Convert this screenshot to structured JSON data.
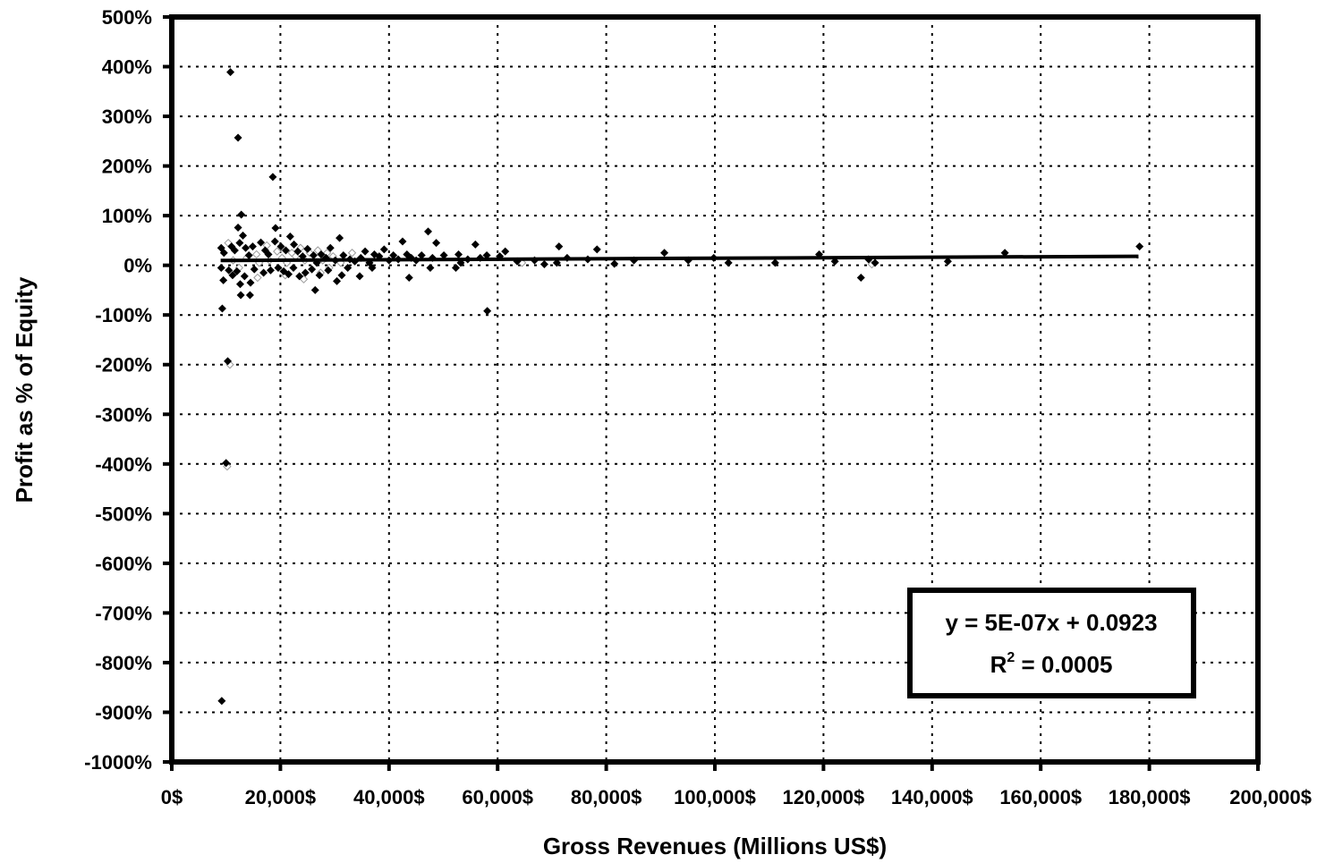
{
  "chart_data": {
    "type": "scatter",
    "xlabel": "Gross Revenues (Millions US$)",
    "ylabel": "Profit as % of Equity",
    "xlim": [
      0,
      200000
    ],
    "ylim": [
      -10,
      5
    ],
    "x_ticks": [
      0,
      20000,
      40000,
      60000,
      80000,
      100000,
      120000,
      140000,
      160000,
      180000,
      200000
    ],
    "x_tick_labels": [
      "0$",
      "20,000$",
      "40,000$",
      "60,000$",
      "80,000$",
      "100,000$",
      "120,000$",
      "140,000$",
      "160,000$",
      "180,000$",
      "200,000$"
    ],
    "y_ticks": [
      5,
      4,
      3,
      2,
      1,
      0,
      -1,
      -2,
      -3,
      -4,
      -5,
      -6,
      -7,
      -8,
      -9,
      -10
    ],
    "y_tick_labels": [
      "500%",
      "400%",
      "300%",
      "200%",
      "100%",
      "0%",
      "-100%",
      "-200%",
      "-300%",
      "-400%",
      "-500%",
      "-600%",
      "-700%",
      "-800%",
      "-900%",
      "-1000%"
    ],
    "grid": true,
    "marker": "diamond",
    "marker_color": "#000000",
    "trendline": {
      "slope": 5e-07,
      "intercept": 0.0923,
      "x_range": [
        9000,
        178000
      ],
      "equation_label": "y = 5E-07x + 0.0923",
      "r2_prefix": "R",
      "r2_sup": "2",
      "r2_value": " = 0.0005",
      "legend_position": "lower-right"
    },
    "points": [
      [
        10800,
        3.89
      ],
      [
        12200,
        2.57
      ],
      [
        18600,
        1.78
      ],
      [
        12800,
        1.02
      ],
      [
        12200,
        0.76
      ],
      [
        19100,
        0.75
      ],
      [
        13100,
        0.6
      ],
      [
        9100,
        0.35
      ],
      [
        9600,
        0.25
      ],
      [
        11000,
        0.38
      ],
      [
        11600,
        0.3
      ],
      [
        12500,
        0.45
      ],
      [
        13600,
        0.35
      ],
      [
        14200,
        0.2
      ],
      [
        14900,
        0.38
      ],
      [
        16400,
        0.46
      ],
      [
        17200,
        0.3
      ],
      [
        17800,
        0.22
      ],
      [
        19000,
        0.48
      ],
      [
        20100,
        0.38
      ],
      [
        21000,
        0.3
      ],
      [
        21800,
        0.58
      ],
      [
        22500,
        0.42
      ],
      [
        23200,
        0.28
      ],
      [
        24100,
        0.18
      ],
      [
        25000,
        0.33
      ],
      [
        26100,
        0.2
      ],
      [
        26700,
        0.05
      ],
      [
        27500,
        0.22
      ],
      [
        28400,
        0.15
      ],
      [
        29200,
        0.35
      ],
      [
        30100,
        0.1
      ],
      [
        30900,
        0.55
      ],
      [
        31600,
        0.2
      ],
      [
        32800,
        0.12
      ],
      [
        33700,
        0.08
      ],
      [
        34800,
        0.15
      ],
      [
        35600,
        0.28
      ],
      [
        36400,
        0.05
      ],
      [
        37300,
        0.22
      ],
      [
        38200,
        0.18
      ],
      [
        39100,
        0.32
      ],
      [
        40000,
        0.1
      ],
      [
        40800,
        0.2
      ],
      [
        41700,
        0.12
      ],
      [
        42500,
        0.48
      ],
      [
        43300,
        0.22
      ],
      [
        44100,
        0.15
      ],
      [
        45000,
        0.1
      ],
      [
        46000,
        0.2
      ],
      [
        47200,
        0.68
      ],
      [
        48000,
        0.15
      ],
      [
        48700,
        0.45
      ],
      [
        50100,
        0.2
      ],
      [
        52800,
        0.22
      ],
      [
        53200,
        0.05
      ],
      [
        54500,
        0.12
      ],
      [
        55900,
        0.42
      ],
      [
        56800,
        0.15
      ],
      [
        58000,
        0.2
      ],
      [
        60400,
        0.18
      ],
      [
        61400,
        0.28
      ],
      [
        63600,
        0.08
      ],
      [
        66800,
        0.1
      ],
      [
        68600,
        0.02
      ],
      [
        70900,
        0.05
      ],
      [
        71300,
        0.38
      ],
      [
        72800,
        0.15
      ],
      [
        76600,
        0.12
      ],
      [
        78300,
        0.32
      ],
      [
        81500,
        0.03
      ],
      [
        85100,
        0.1
      ],
      [
        90700,
        0.25
      ],
      [
        95100,
        0.1
      ],
      [
        99800,
        0.15
      ],
      [
        102500,
        0.05
      ],
      [
        111100,
        0.05
      ],
      [
        119200,
        0.22
      ],
      [
        122100,
        0.08
      ],
      [
        128300,
        0.12
      ],
      [
        129500,
        0.05
      ],
      [
        142900,
        0.08
      ],
      [
        153400,
        0.25
      ],
      [
        178200,
        0.38
      ],
      [
        9100,
        -0.05
      ],
      [
        9500,
        -0.3
      ],
      [
        10500,
        -0.1
      ],
      [
        11200,
        -0.2
      ],
      [
        12000,
        -0.12
      ],
      [
        12600,
        -0.38
      ],
      [
        13400,
        -0.22
      ],
      [
        14500,
        -0.35
      ],
      [
        15200,
        -0.08
      ],
      [
        16900,
        -0.15
      ],
      [
        18200,
        -0.1
      ],
      [
        19600,
        -0.05
      ],
      [
        20600,
        -0.12
      ],
      [
        21500,
        -0.18
      ],
      [
        22400,
        -0.05
      ],
      [
        23500,
        -0.22
      ],
      [
        24600,
        -0.15
      ],
      [
        25800,
        -0.08
      ],
      [
        26400,
        -0.5
      ],
      [
        27200,
        -0.2
      ],
      [
        28800,
        -0.1
      ],
      [
        30400,
        -0.32
      ],
      [
        31300,
        -0.2
      ],
      [
        32400,
        -0.05
      ],
      [
        34600,
        -0.22
      ],
      [
        36900,
        -0.05
      ],
      [
        43700,
        -0.25
      ],
      [
        47600,
        -0.05
      ],
      [
        52300,
        -0.05
      ],
      [
        126900,
        -0.25
      ],
      [
        12700,
        -0.6
      ],
      [
        14400,
        -0.6
      ],
      [
        9300,
        -0.87
      ],
      [
        58100,
        -0.92
      ],
      [
        10300,
        -1.93
      ],
      [
        10000,
        -3.98
      ],
      [
        9200,
        -8.77
      ]
    ],
    "faint_points": [
      [
        10400,
        0.45
      ],
      [
        11300,
        0.1
      ],
      [
        13800,
        0.15
      ],
      [
        15600,
        0.22
      ],
      [
        16100,
        0.05
      ],
      [
        17500,
        0.4
      ],
      [
        18000,
        0.1
      ],
      [
        19400,
        0.28
      ],
      [
        20300,
        0.15
      ],
      [
        21200,
        0.05
      ],
      [
        22100,
        0.25
      ],
      [
        22800,
        0.18
      ],
      [
        23700,
        0.35
      ],
      [
        24500,
        0.1
      ],
      [
        25400,
        0.25
      ],
      [
        26900,
        0.3
      ],
      [
        27800,
        0.1
      ],
      [
        28600,
        0.25
      ],
      [
        29700,
        0.18
      ],
      [
        31100,
        0.05
      ],
      [
        33200,
        0.25
      ],
      [
        12400,
        -0.05
      ],
      [
        15800,
        -0.25
      ],
      [
        20900,
        -0.2
      ],
      [
        24300,
        -0.28
      ],
      [
        27400,
        -0.15
      ],
      [
        29000,
        -0.05
      ],
      [
        10700,
        -2.0
      ],
      [
        10200,
        -4.05
      ],
      [
        64500,
        0.05
      ],
      [
        128900,
        0.02
      ]
    ]
  }
}
